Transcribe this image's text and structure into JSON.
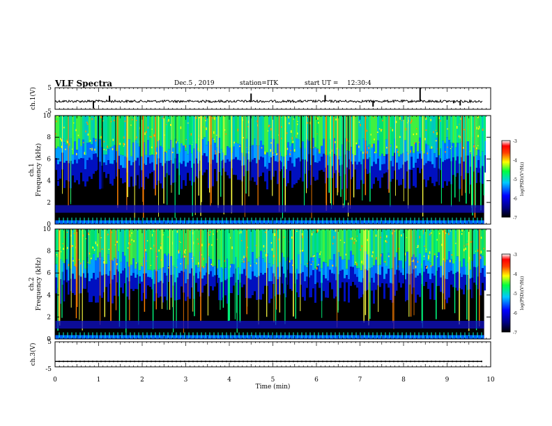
{
  "header": {
    "title": "VLF Spectra",
    "date": "Dec.5 , 2019",
    "station": "station=ITK",
    "start_ut_label": "start UT =",
    "start_ut_value": "12:30:4"
  },
  "chart_data": [
    {
      "type": "line",
      "name": "ch1-waveform",
      "ylabel": "ch.1(V)",
      "ylim": [
        -5,
        5
      ],
      "ytick_labels": [
        "5",
        "-5"
      ],
      "xlim": [
        0,
        10
      ],
      "baseline": 0,
      "spikes": [
        [
          0.88,
          -4.6
        ],
        [
          1.25,
          1.3
        ],
        [
          4.5,
          2.3
        ],
        [
          6.2,
          1.6
        ],
        [
          7.3,
          -3.8
        ],
        [
          8.38,
          4.8
        ],
        [
          9.15,
          -2.2
        ],
        [
          9.3,
          -3.2
        ]
      ]
    },
    {
      "type": "heatmap",
      "name": "ch1-spectrogram",
      "ylabel": "ch.1 Frequency (kHz)",
      "ylim": [
        0,
        10
      ],
      "ytick_labels": [
        "0",
        "2",
        "4",
        "6",
        "8",
        "10"
      ],
      "xlim": [
        0,
        9.85
      ],
      "colorbar": {
        "label": "log(PSD)(V²/Hz)",
        "range": [
          -7,
          -3
        ],
        "tick_labels": [
          "-3",
          "-4",
          "-5",
          "-6",
          "-7"
        ]
      }
    },
    {
      "type": "heatmap",
      "name": "ch2-spectrogram",
      "ylabel": "ch.2 Frequency (kHz)",
      "ylim": [
        0,
        10
      ],
      "ytick_labels": [
        "0",
        "2",
        "4",
        "6",
        "8",
        "10"
      ],
      "xlim": [
        0,
        9.85
      ],
      "colorbar": {
        "label": "log(PSD)(V²/Hz)",
        "range": [
          -7,
          -3
        ],
        "tick_labels": [
          "-3",
          "-4",
          "-5",
          "-6",
          "-7"
        ]
      }
    },
    {
      "type": "line",
      "name": "ch3-waveform",
      "ylabel": "ch.3(V)",
      "ylim": [
        -5,
        5
      ],
      "ytick_labels": [
        "5",
        "-5"
      ],
      "xlim": [
        0,
        10
      ],
      "baseline": -2
    }
  ],
  "xaxis": {
    "label": "Time (min)",
    "range": [
      0,
      10
    ],
    "tick_labels": [
      "0",
      "1",
      "2",
      "3",
      "4",
      "5",
      "6",
      "7",
      "8",
      "9",
      "10"
    ]
  }
}
